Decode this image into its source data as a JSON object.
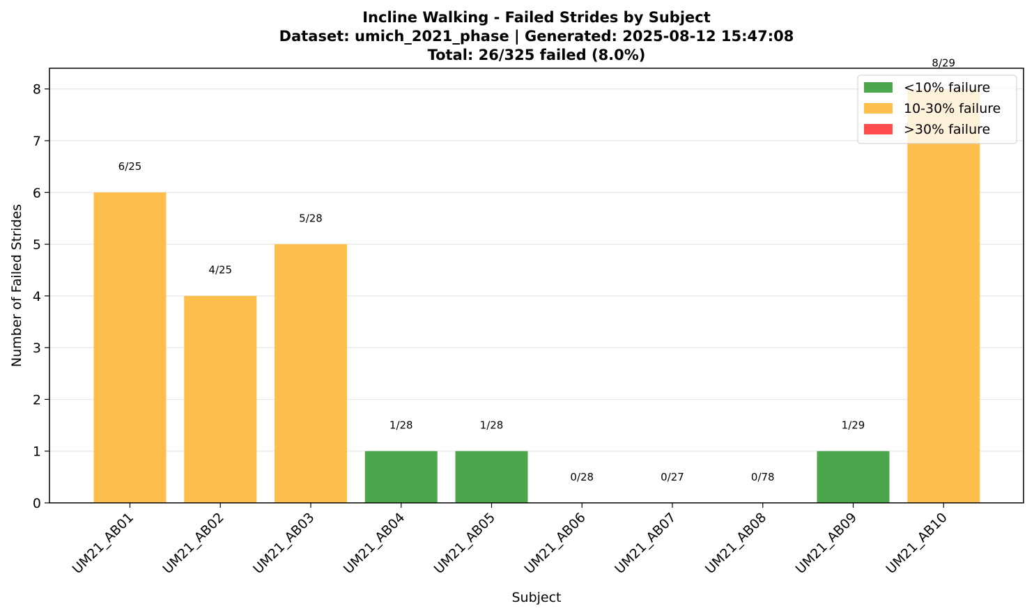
{
  "chart_data": {
    "type": "bar",
    "title_lines": [
      "Incline Walking - Failed Strides by Subject",
      "Dataset: umich_2021_phase | Generated: 2025-08-12 15:47:08",
      "Total: 26/325 failed (8.0%)"
    ],
    "xlabel": "Subject",
    "ylabel": "Number of Failed Strides",
    "ylim": [
      0,
      8.4
    ],
    "yticks": [
      "0",
      "1",
      "2",
      "3",
      "4",
      "5",
      "6",
      "7",
      "8"
    ],
    "grid": "y",
    "categories": [
      "UM21_AB01",
      "UM21_AB02",
      "UM21_AB03",
      "UM21_AB04",
      "UM21_AB05",
      "UM21_AB06",
      "UM21_AB07",
      "UM21_AB08",
      "UM21_AB09",
      "UM21_AB10"
    ],
    "values": [
      6,
      4,
      5,
      1,
      1,
      0,
      0,
      0,
      1,
      8
    ],
    "labels": [
      "6/25",
      "4/25",
      "5/28",
      "1/28",
      "1/28",
      "0/28",
      "0/27",
      "0/78",
      "1/29",
      "8/29"
    ],
    "bar_groups": [
      "mid",
      "mid",
      "mid",
      "low",
      "low",
      "low",
      "low",
      "low",
      "low",
      "mid"
    ],
    "legend": {
      "position": "upper right",
      "entries": [
        {
          "key": "low",
          "label": "<10% failure",
          "color": "#4ca64c"
        },
        {
          "key": "mid",
          "label": "10-30% failure",
          "color": "#ffbf4c"
        },
        {
          "key": "high",
          "label": ">30% failure",
          "color": "#ff4c4c"
        }
      ]
    }
  }
}
